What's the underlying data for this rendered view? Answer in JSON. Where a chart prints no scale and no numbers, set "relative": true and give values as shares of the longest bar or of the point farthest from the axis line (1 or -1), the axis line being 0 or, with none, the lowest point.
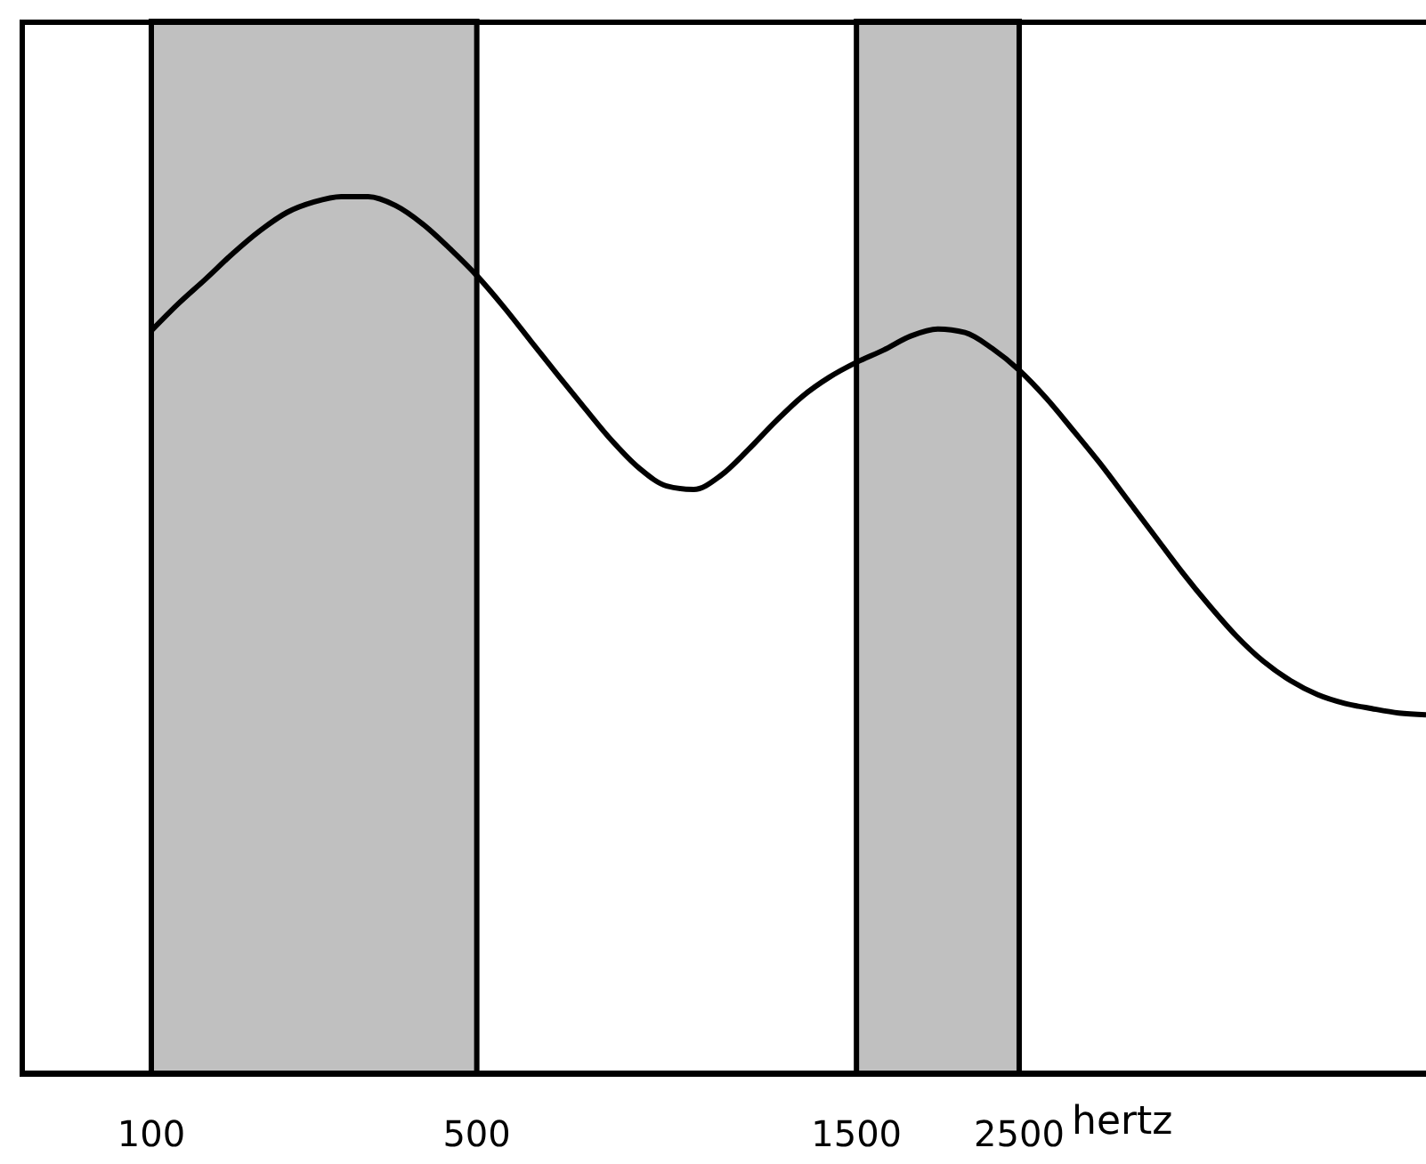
{
  "chart_data": {
    "type": "line",
    "xlabel": "hertz",
    "relative": true,
    "color": "#000000",
    "marker": "none",
    "categories": [
      "100",
      null,
      null,
      null,
      null,
      null,
      null,
      null,
      null,
      null,
      null,
      null,
      "500",
      null,
      null,
      null,
      null,
      null,
      null,
      null,
      null,
      null,
      null,
      null,
      null,
      null,
      "1500",
      null,
      null,
      null,
      null,
      null,
      "2500",
      null,
      null,
      null,
      null,
      null,
      null,
      null,
      null,
      null,
      null,
      null,
      null,
      null,
      null,
      null
    ],
    "values": [
      0.847,
      0.878,
      0.906,
      0.935,
      0.961,
      0.982,
      0.994,
      1.0,
      1.0,
      0.99,
      0.969,
      0.941,
      0.91,
      0.874,
      0.835,
      0.796,
      0.758,
      0.721,
      0.69,
      0.67,
      0.666,
      0.682,
      0.711,
      0.743,
      0.772,
      0.794,
      0.811,
      0.825,
      0.841,
      0.849,
      0.845,
      0.827,
      0.802,
      0.77,
      0.733,
      0.695,
      0.654,
      0.613,
      0.572,
      0.534,
      0.499,
      0.47,
      0.448,
      0.432,
      0.422,
      0.416,
      0.411,
      0.409
    ],
    "bands": [
      {
        "axis": "x",
        "from": "100",
        "to": "500",
        "color": "#c0c0c0"
      },
      {
        "axis": "x",
        "from": "1500",
        "to": "2500",
        "color": "#c0c0c0"
      }
    ]
  }
}
